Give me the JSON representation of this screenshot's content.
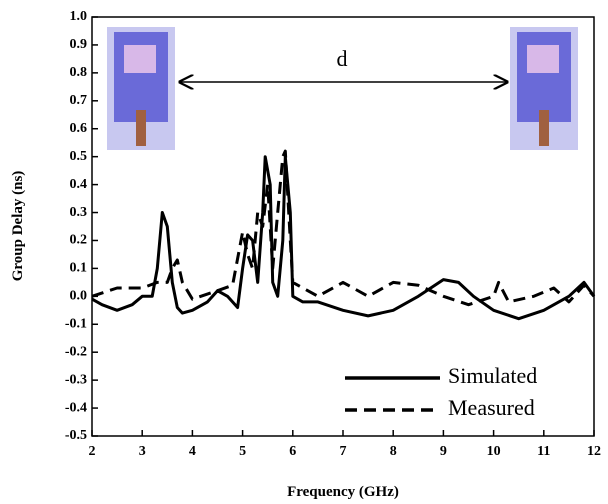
{
  "chart_data": {
    "type": "line",
    "xlabel": "Frequency (GHz)",
    "ylabel": "Group Delay (ns)",
    "annotation": "d",
    "xlim": [
      2,
      12
    ],
    "xticks": [
      2,
      3,
      4,
      5,
      6,
      7,
      8,
      9,
      10,
      11,
      12
    ],
    "ylim": [
      -0.5,
      1.0
    ],
    "yticks": [
      {
        "value": 1,
        "label": "1.0"
      },
      0.9,
      0.8,
      0.7,
      0.6,
      0.5,
      0.4,
      0.3,
      0.2,
      0.1,
      {
        "value": 0,
        "label": "0.0"
      },
      -0.1,
      -0.2,
      -0.3,
      -0.4,
      -0.5
    ],
    "legend": "lower right",
    "series": [
      {
        "name": "Simulated",
        "color": "#000000",
        "style": "solid",
        "x": [
          2.0,
          2.2,
          2.5,
          2.8,
          3.0,
          3.2,
          3.3,
          3.4,
          3.5,
          3.6,
          3.7,
          3.8,
          4.0,
          4.3,
          4.5,
          4.7,
          4.9,
          5.0,
          5.1,
          5.2,
          5.3,
          5.4,
          5.45,
          5.55,
          5.6,
          5.7,
          5.8,
          5.85,
          5.95,
          6.0,
          6.2,
          6.5,
          7.0,
          7.5,
          8.0,
          8.5,
          9.0,
          9.3,
          9.6,
          10.0,
          10.5,
          11.0,
          11.5,
          11.8,
          12.0
        ],
        "values": [
          -0.01,
          -0.03,
          -0.05,
          -0.03,
          0.0,
          0.0,
          0.1,
          0.3,
          0.25,
          0.05,
          -0.04,
          -0.06,
          -0.05,
          -0.02,
          0.02,
          0.0,
          -0.04,
          0.1,
          0.22,
          0.2,
          0.05,
          0.3,
          0.5,
          0.4,
          0.05,
          0.0,
          0.2,
          0.5,
          0.3,
          0.0,
          -0.02,
          -0.02,
          -0.05,
          -0.07,
          -0.05,
          0.0,
          0.06,
          0.05,
          0.0,
          -0.05,
          -0.08,
          -0.05,
          0.0,
          0.05,
          0.0
        ]
      },
      {
        "name": "Measured",
        "color": "#000000",
        "style": "dashed",
        "x": [
          2.0,
          2.5,
          3.0,
          3.3,
          3.5,
          3.6,
          3.7,
          3.8,
          4.0,
          4.5,
          4.8,
          5.0,
          5.1,
          5.2,
          5.3,
          5.4,
          5.5,
          5.6,
          5.7,
          5.8,
          5.85,
          5.95,
          6.0,
          6.5,
          7.0,
          7.5,
          8.0,
          8.5,
          9.0,
          9.5,
          10.0,
          10.1,
          10.3,
          10.8,
          11.2,
          11.5,
          11.8,
          12.0
        ],
        "values": [
          0.0,
          0.03,
          0.03,
          0.05,
          0.05,
          0.1,
          0.13,
          0.05,
          -0.01,
          0.02,
          0.04,
          0.23,
          0.15,
          0.1,
          0.3,
          0.25,
          0.4,
          0.1,
          0.3,
          0.5,
          0.52,
          0.2,
          0.05,
          0.0,
          0.05,
          0.0,
          0.05,
          0.04,
          0.0,
          -0.03,
          0.0,
          0.05,
          -0.02,
          0.0,
          0.03,
          -0.02,
          0.04,
          0.0
        ]
      }
    ]
  }
}
